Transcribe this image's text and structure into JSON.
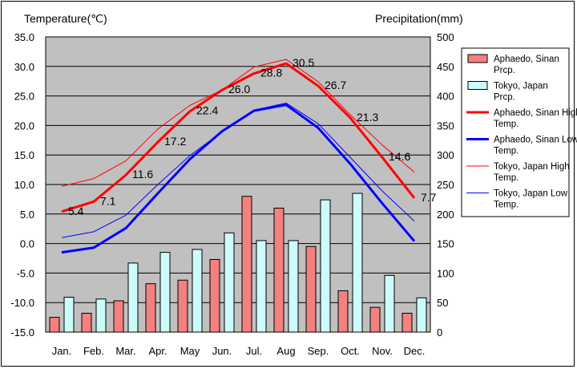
{
  "chart_data": {
    "type": "bar+line",
    "left_axis_title": "Temperature(℃)",
    "right_axis_title": "Precipitation(mm)",
    "categories": [
      "Jan.",
      "Feb.",
      "Mar.",
      "Apr.",
      "May",
      "Jun.",
      "Jul.",
      "Aug",
      "Sep.",
      "Oct.",
      "Nov.",
      "Dec."
    ],
    "temp_ylim": [
      -15,
      35
    ],
    "temp_ticks": [
      "35.0",
      "30.0",
      "25.0",
      "20.0",
      "15.0",
      "10.0",
      "5.0",
      "0.0",
      "-5.0",
      "-10.0",
      "-15.0"
    ],
    "prcp_ylim": [
      0,
      500
    ],
    "prcp_ticks": [
      "500",
      "450",
      "400",
      "350",
      "300",
      "250",
      "200",
      "150",
      "100",
      "50",
      "0"
    ],
    "bar_series": [
      {
        "name": "Aphaedo, Sinan Prcp.",
        "color": "#f58080",
        "values": [
          25,
          32,
          53,
          82,
          88,
          123,
          230,
          210,
          145,
          70,
          42,
          32
        ]
      },
      {
        "name": "Tokyo, Japan Prcp.",
        "color": "#ccfcfa",
        "values": [
          59,
          56,
          117,
          135,
          140,
          168,
          155,
          155,
          224,
          235,
          96,
          58
        ]
      }
    ],
    "line_series": [
      {
        "name": "Aphaedo, Sinan High Temp.",
        "color": "#ff0000",
        "width": "thick",
        "values": [
          5.4,
          7.1,
          11.6,
          17.2,
          22.4,
          26.0,
          28.8,
          30.5,
          26.7,
          21.3,
          14.6,
          7.7
        ],
        "labels": [
          "5.4",
          "7.1",
          "11.6",
          "17.2",
          "22.4",
          "26.0",
          "28.8",
          "30.5",
          "26.7",
          "21.3",
          "14.6",
          "7.7"
        ]
      },
      {
        "name": "Aphaedo, Sinan Low Temp.",
        "color": "#0000ff",
        "width": "thick",
        "values": [
          -1.5,
          -0.7,
          2.6,
          8.5,
          14.3,
          19.0,
          22.5,
          23.5,
          19.6,
          13.5,
          6.8,
          0.4
        ]
      },
      {
        "name": "Tokyo, Japan High Temp.",
        "color": "#ff0000",
        "width": "thin",
        "values": [
          9.7,
          11.0,
          14.0,
          19.4,
          23.4,
          26.0,
          29.9,
          31.2,
          27.4,
          21.8,
          16.7,
          12.1
        ]
      },
      {
        "name": "Tokyo, Japan Low Temp.",
        "color": "#0000ff",
        "width": "thin",
        "values": [
          1.0,
          2.0,
          4.8,
          10.0,
          14.9,
          18.9,
          22.6,
          23.8,
          20.3,
          14.6,
          8.9,
          3.8
        ]
      }
    ],
    "legend": [
      {
        "name": "Aphaedo, Sinan Prcp.",
        "kind": "bar",
        "color": "#f58080"
      },
      {
        "name": "Tokyo, Japan Prcp.",
        "kind": "bar",
        "color": "#ccfcfa"
      },
      {
        "name": "Aphaedo, Sinan High Temp.",
        "kind": "thick-line",
        "color": "#ff0000"
      },
      {
        "name": "Aphaedo, Sinan Low Temp.",
        "kind": "thick-line",
        "color": "#0000ff"
      },
      {
        "name": "Tokyo, Japan High Temp.",
        "kind": "thin-line",
        "color": "#ff0000"
      },
      {
        "name": "Tokyo, Japan Low Temp.",
        "kind": "thin-line",
        "color": "#0000ff"
      }
    ],
    "legend_placement": "right",
    "plot_background": "#c0c0c0",
    "grid": true
  }
}
